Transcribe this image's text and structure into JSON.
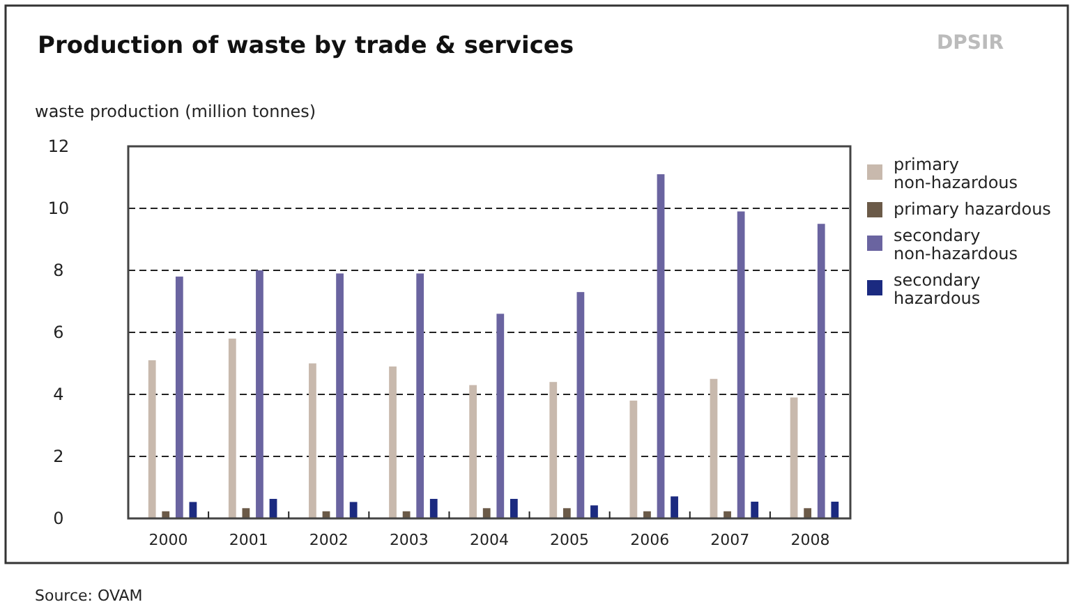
{
  "chart_data": {
    "type": "bar",
    "title": "Production of waste by trade & services",
    "ylabel": "waste production (million tonnes)",
    "categories": [
      "2000",
      "2001",
      "2002",
      "2003",
      "2004",
      "2005",
      "2006",
      "2007",
      "2008"
    ],
    "series": [
      {
        "name": "primary non-hazardous",
        "color": "#c8b9ad",
        "values": [
          5.1,
          5.8,
          5.0,
          4.9,
          4.3,
          4.4,
          3.8,
          4.5,
          3.9
        ]
      },
      {
        "name": "primary hazardous",
        "color": "#6b5a48",
        "values": [
          0.23,
          0.33,
          0.23,
          0.23,
          0.33,
          0.33,
          0.23,
          0.23,
          0.33
        ]
      },
      {
        "name": "secondary non-hazardous",
        "color": "#6a64a0",
        "values": [
          7.8,
          8.0,
          7.9,
          7.9,
          6.6,
          7.3,
          11.1,
          9.9,
          9.5
        ]
      },
      {
        "name": "secondary hazardous",
        "color": "#1b2a80",
        "values": [
          0.53,
          0.63,
          0.53,
          0.63,
          0.63,
          0.42,
          0.71,
          0.54,
          0.54
        ]
      }
    ],
    "ylim": [
      0,
      12
    ],
    "yticks": [
      0,
      2,
      4,
      6,
      8,
      10,
      12
    ],
    "grid": "y",
    "legend": "right",
    "annotations": [
      "DPSIR",
      "Source: OVAM"
    ]
  }
}
